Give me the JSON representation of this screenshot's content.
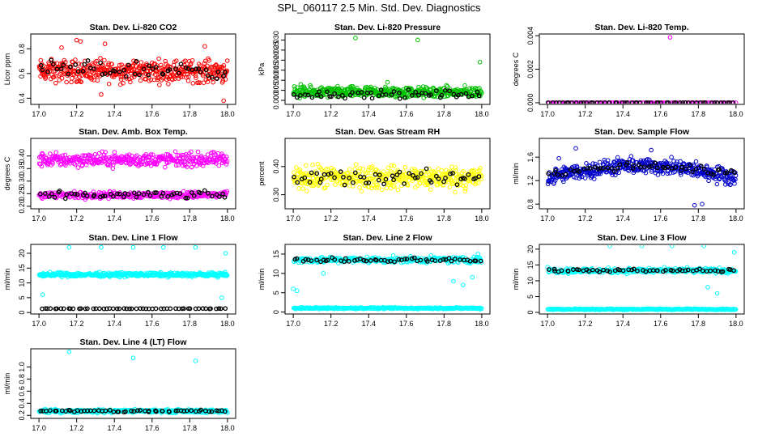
{
  "figure": {
    "main_title": "SPL_060117  2.5 Min. Std. Dev. Diagnostics",
    "x_range": [
      17.0,
      18.0
    ],
    "x_ticks": [
      "17.0",
      "17.2",
      "17.4",
      "17.6",
      "17.8",
      "18.0"
    ],
    "colors": {
      "axis": "#000000",
      "overlay": "#000000"
    }
  },
  "chart_data": [
    {
      "type": "scatter",
      "name": "li820-co2",
      "title": "Stan. Dev. Li-820 CO2",
      "ylabel": "Licor ppm",
      "color": "#ff0000",
      "ylim": [
        0.35,
        0.92
      ],
      "yticks": [
        "0.4",
        "0.6",
        "0.8"
      ],
      "ytick_values": [
        0.4,
        0.6,
        0.8
      ],
      "series": [
        {
          "name": "data",
          "base": 0.62,
          "spread": 0.13,
          "n": 450,
          "outliers": [
            [
              17.2,
              0.87
            ],
            [
              17.22,
              0.86
            ],
            [
              17.12,
              0.81
            ],
            [
              17.35,
              0.84
            ],
            [
              17.88,
              0.82
            ],
            [
              17.98,
              0.38
            ],
            [
              17.33,
              0.43
            ]
          ]
        },
        {
          "name": "2.5-min overlay",
          "color": "#000000",
          "base": 0.63,
          "spread": 0.1,
          "n": 55
        }
      ]
    },
    {
      "type": "scatter",
      "name": "li820-pressure",
      "title": "Stan. Dev. Li-820 Pressure",
      "ylabel": "kPa",
      "color": "#00c000",
      "ylim": [
        -0.002,
        0.033
      ],
      "yticks": [
        "0.000",
        "0.005",
        "0.010",
        "0.015",
        "0.020",
        "0.025",
        "0.030"
      ],
      "ytick_values": [
        0.0,
        0.005,
        0.01,
        0.015,
        0.02,
        0.025,
        0.03
      ],
      "series": [
        {
          "name": "data",
          "base": 0.004,
          "spread": 0.004,
          "n": 450,
          "outliers": [
            [
              17.33,
              0.031
            ],
            [
              17.66,
              0.03
            ],
            [
              17.99,
              0.019
            ],
            [
              17.04,
              0.008
            ],
            [
              17.5,
              0.009
            ]
          ]
        },
        {
          "name": "2.5-min overlay",
          "color": "#000000",
          "base": 0.003,
          "spread": 0.003,
          "n": 55
        }
      ]
    },
    {
      "type": "scatter",
      "name": "li820-temp",
      "title": "Stan. Dev. Li-820 Temp.",
      "ylabel": "degrees C",
      "color": "#ff00ff",
      "ylim": [
        -0.0001,
        0.0041
      ],
      "yticks": [
        "0.000",
        "0.002",
        "0.004"
      ],
      "ytick_values": [
        0.0,
        0.002,
        0.004
      ],
      "series": [
        {
          "name": "data",
          "base": 0.0,
          "spread": 0.0,
          "n": 120,
          "outliers": [
            [
              17.65,
              0.0039
            ]
          ]
        },
        {
          "name": "2.5-min overlay",
          "color": "#000000",
          "base": 0.0,
          "spread": 0.0,
          "n": 55
        }
      ]
    },
    {
      "type": "scatter",
      "name": "amb-box-temp",
      "title": "Stan. Dev. Amb. Box Temp.",
      "ylabel": "degrees C",
      "color": "#ff00ff",
      "ylim": [
        0.19,
        0.47
      ],
      "yticks": [
        "0.20",
        "0.25",
        "0.30",
        "0.35",
        "0.40"
      ],
      "ytick_values": [
        0.2,
        0.25,
        0.3,
        0.35,
        0.4
      ],
      "series": [
        {
          "name": "upper band",
          "base": 0.385,
          "spread": 0.04,
          "n": 380
        },
        {
          "name": "lower band",
          "base": 0.245,
          "spread": 0.02,
          "n": 300
        },
        {
          "name": "2.5-min overlay",
          "color": "#000000",
          "base": 0.245,
          "spread": 0.02,
          "n": 55
        }
      ]
    },
    {
      "type": "scatter",
      "name": "gas-stream-rh",
      "title": "Stan. Dev. Gas Stream RH",
      "ylabel": "percent",
      "color": "#ffff00",
      "ylim": [
        0.25,
        0.5
      ],
      "yticks": [
        "0.30",
        "0.40"
      ],
      "ytick_values": [
        0.3,
        0.4
      ],
      "series": [
        {
          "name": "data",
          "base": 0.36,
          "spread": 0.06,
          "n": 420
        },
        {
          "name": "2.5-min overlay",
          "color": "#000000",
          "base": 0.36,
          "spread": 0.04,
          "n": 55
        }
      ]
    },
    {
      "type": "scatter",
      "name": "sample-flow",
      "title": "Stan. Dev. Sample Flow",
      "ylabel": "ml/min",
      "color": "#0000cc",
      "ylim": [
        0.72,
        1.92
      ],
      "yticks": [
        "0.8",
        "1.2",
        "1.6"
      ],
      "ytick_values": [
        0.8,
        1.2,
        1.6
      ],
      "series": [
        {
          "name": "data",
          "base": 1.25,
          "spread": 0.2,
          "trend": 0.2,
          "n": 450,
          "outliers": [
            [
              17.15,
              1.75
            ],
            [
              17.78,
              0.78
            ],
            [
              17.82,
              0.8
            ],
            [
              17.55,
              1.72
            ],
            [
              17.06,
              1.58
            ]
          ]
        },
        {
          "name": "2.5-min overlay",
          "color": "#000000",
          "base": 1.3,
          "spread": 0.1,
          "trend": 0.15,
          "n": 55
        }
      ]
    },
    {
      "type": "scatter",
      "name": "line1-flow",
      "title": "Stan. Dev. Line 1 Flow",
      "ylabel": "ml/min",
      "color": "#00ffff",
      "ylim": [
        -0.5,
        23
      ],
      "yticks": [
        "0",
        "5",
        "10",
        "15",
        "20"
      ],
      "ytick_values": [
        0,
        5,
        10,
        15,
        20
      ],
      "series": [
        {
          "name": "data",
          "base": 12.8,
          "spread": 1.0,
          "n": 380,
          "outliers": [
            [
              17.16,
              22
            ],
            [
              17.33,
              22
            ],
            [
              17.5,
              22
            ],
            [
              17.66,
              22
            ],
            [
              17.83,
              22
            ],
            [
              17.99,
              20
            ],
            [
              17.02,
              6
            ],
            [
              17.97,
              5
            ]
          ]
        },
        {
          "name": "2.5-min overlay",
          "color": "#000000",
          "base": 1.3,
          "spread": 0.1,
          "n": 55
        }
      ]
    },
    {
      "type": "scatter",
      "name": "line2-flow",
      "title": "Stan. Dev. Line 2 Flow",
      "ylabel": "ml/min",
      "color": "#00ffff",
      "ylim": [
        -0.5,
        17.5
      ],
      "yticks": [
        "0",
        "5",
        "10",
        "15"
      ],
      "ytick_values": [
        0,
        5,
        10,
        15
      ],
      "series": [
        {
          "name": "low band",
          "base": 1.0,
          "spread": 0.3,
          "n": 300
        },
        {
          "name": "high band",
          "base": 13.5,
          "spread": 1.2,
          "n": 300,
          "outliers": [
            [
              17.0,
              6
            ],
            [
              17.02,
              5.5
            ],
            [
              17.16,
              10
            ],
            [
              17.85,
              8
            ],
            [
              17.9,
              7
            ],
            [
              17.95,
              9
            ],
            [
              17.98,
              15
            ]
          ]
        },
        {
          "name": "2.5-min overlay",
          "color": "#000000",
          "base": 13.5,
          "spread": 0.8,
          "n": 55
        }
      ]
    },
    {
      "type": "scatter",
      "name": "line3-flow",
      "title": "Stan. Dev. Line 3 Flow",
      "ylabel": "ml/min",
      "color": "#00ffff",
      "ylim": [
        -0.5,
        21.5
      ],
      "yticks": [
        "0",
        "5",
        "10",
        "15",
        "20"
      ],
      "ytick_values": [
        0,
        5,
        10,
        15,
        20
      ],
      "series": [
        {
          "name": "low band",
          "base": 1.0,
          "spread": 0.3,
          "n": 300
        },
        {
          "name": "high band",
          "base": 13.2,
          "spread": 1.2,
          "n": 300,
          "outliers": [
            [
              17.33,
              21
            ],
            [
              17.5,
              21
            ],
            [
              17.66,
              21
            ],
            [
              17.83,
              21
            ],
            [
              17.99,
              19
            ],
            [
              17.85,
              8
            ],
            [
              17.9,
              6
            ]
          ]
        },
        {
          "name": "2.5-min overlay",
          "color": "#000000",
          "base": 13.2,
          "spread": 0.7,
          "n": 55
        }
      ]
    },
    {
      "type": "scatter",
      "name": "line4-lt-flow",
      "title": "Stan. Dev. Line 4 (LT) Flow",
      "ylabel": "ml/min",
      "color": "#00ffff",
      "ylim": [
        0.15,
        1.3
      ],
      "yticks": [
        "0.2",
        "0.4",
        "0.6",
        "0.8",
        "1.0"
      ],
      "ytick_values": [
        0.2,
        0.4,
        0.6,
        0.8,
        1.0
      ],
      "series": [
        {
          "name": "data",
          "base": 0.27,
          "spread": 0.04,
          "n": 380,
          "outliers": [
            [
              17.16,
              1.25
            ],
            [
              17.5,
              1.15
            ],
            [
              17.83,
              1.1
            ]
          ]
        },
        {
          "name": "2.5-min overlay",
          "color": "#000000",
          "base": 0.27,
          "spread": 0.03,
          "n": 55
        }
      ]
    }
  ]
}
